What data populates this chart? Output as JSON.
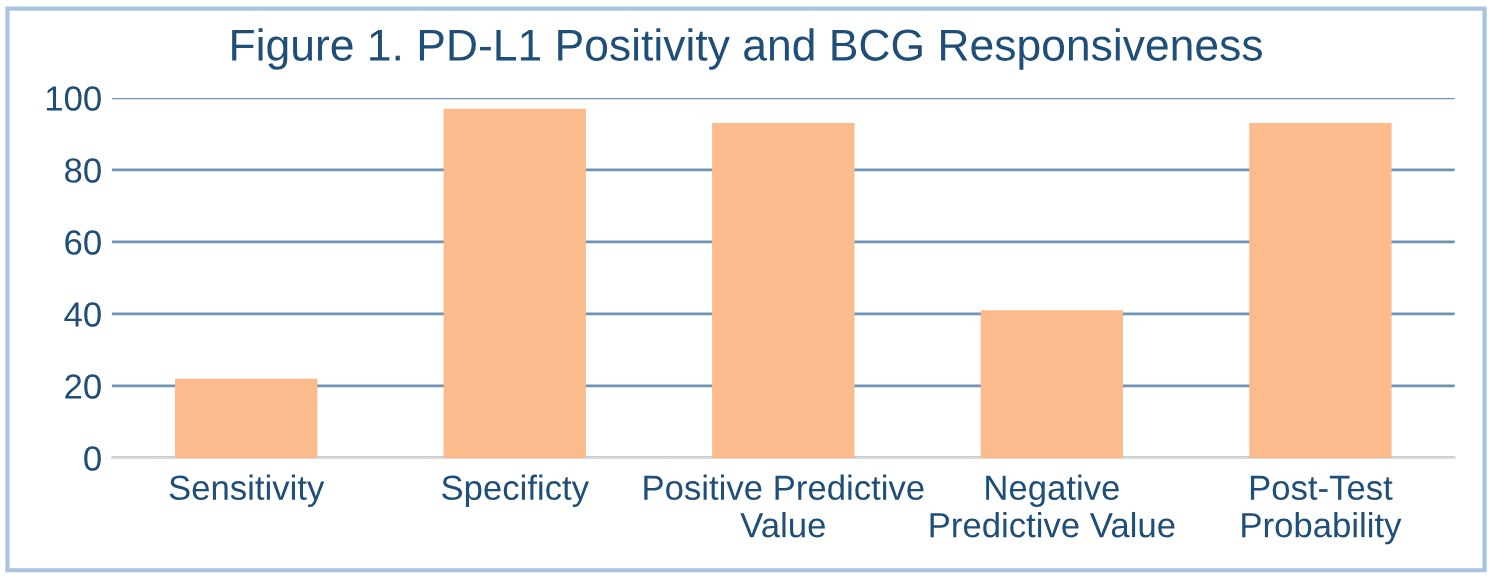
{
  "chart_data": {
    "type": "bar",
    "title": "Figure 1. PD-L1 Positivity and BCG Responsiveness",
    "categories": [
      "Sensitivity",
      "Specificty",
      "Positive Predictive\nValue",
      "Negative\nPredictive Value",
      "Post-Test\nProbability"
    ],
    "values": [
      22,
      97,
      93,
      41,
      93
    ],
    "color": "#fbbb8d",
    "ylim": [
      0,
      100
    ],
    "yticks": [
      0,
      20,
      40,
      60,
      80,
      100
    ],
    "grid": "y"
  }
}
